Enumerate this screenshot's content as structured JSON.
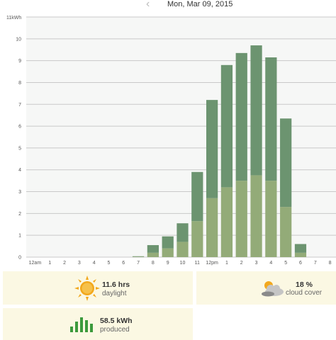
{
  "header": {
    "date": "Mon, Mar 09, 2015",
    "prev_icon": "chevron-left-icon"
  },
  "chart_data": {
    "type": "bar",
    "stacked": true,
    "categories": [
      "12am",
      "1",
      "2",
      "3",
      "4",
      "5",
      "6",
      "7",
      "8",
      "9",
      "10",
      "11",
      "12pm",
      "1",
      "2",
      "3",
      "4",
      "5",
      "6",
      "7",
      "8"
    ],
    "series": [
      {
        "color": "#93ab78",
        "values": [
          0,
          0,
          0,
          0,
          0,
          0,
          0,
          0.02,
          0.2,
          0.4,
          0.7,
          1.65,
          2.7,
          3.2,
          3.5,
          3.75,
          3.5,
          2.3,
          0.2,
          0,
          0
        ]
      },
      {
        "color": "#6c9470",
        "values": [
          0,
          0,
          0,
          0,
          0,
          0,
          0,
          0.02,
          0.35,
          0.55,
          0.85,
          2.25,
          4.5,
          5.6,
          5.85,
          5.95,
          5.65,
          4.05,
          0.4,
          0,
          0
        ]
      }
    ],
    "y_unit_label": "11kWh",
    "yticks": [
      "0",
      "1",
      "2",
      "3",
      "4",
      "5",
      "6",
      "7",
      "8",
      "9",
      "10"
    ],
    "ylim": [
      0,
      11
    ],
    "grid": true
  },
  "cards": {
    "daylight": {
      "value": "11.6 hrs",
      "label": "daylight",
      "icon": "sun-icon"
    },
    "cloud": {
      "value": "18 %",
      "label": "cloud cover",
      "icon": "cloud-sun-icon"
    },
    "produced": {
      "value": "58.5 kWh",
      "label": "produced",
      "icon": "bar-chart-icon"
    }
  },
  "colors": {
    "plot_bg": "#f6f7f6",
    "grid": "#c9c9c9",
    "card_bg": "#fbf8e3",
    "sun": "#f2a81d",
    "produced_icon": "#3c9a3c"
  }
}
